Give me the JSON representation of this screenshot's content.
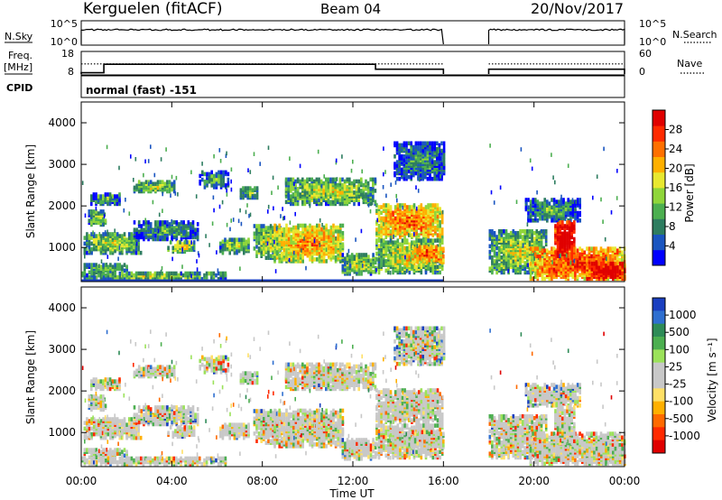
{
  "header": {
    "station": "Kerguelen (fitACF)",
    "beam": "Beam 04",
    "date": "20/Nov/2017"
  },
  "nsky_panel": {
    "left_label": "N.Sky",
    "right_label": "N.Search",
    "left_ticks": [
      "10^5",
      "10^0"
    ],
    "right_ticks": [
      "10^5",
      "10^0"
    ],
    "segments": [
      {
        "start": 0.0,
        "end": 16.0,
        "level": "high"
      },
      {
        "start": 18.0,
        "end": 24.0,
        "level": "high"
      }
    ]
  },
  "freq_panel": {
    "left_label_1": "Freq.",
    "left_label_2": "[MHz]",
    "right_label": "Nave",
    "left_ticks": [
      "18",
      "8"
    ],
    "right_ticks": [
      "60",
      "0"
    ],
    "freq_steps": [
      {
        "start": 0.0,
        "end": 1.0,
        "mhz": 8.6
      },
      {
        "start": 1.0,
        "end": 13.0,
        "mhz": 12.5
      },
      {
        "start": 13.0,
        "end": 16.0,
        "mhz": 10.2
      },
      {
        "start": 18.0,
        "end": 24.0,
        "mhz": 10.2
      }
    ],
    "nave_level": 28
  },
  "cpid_panel": {
    "label": "CPID",
    "text": "normal (fast) -151"
  },
  "chart_data": [
    {
      "type": "heatmap",
      "name": "Power",
      "ylabel": "Slant Range [km]",
      "ylim": [
        180,
        4500
      ],
      "yticks": [
        1000,
        2000,
        3000,
        4000
      ],
      "colorbar_label": "Power [dB]",
      "colorbar_ticks": [
        "4",
        "8",
        "12",
        "16",
        "20",
        "24",
        "28"
      ],
      "colorbar_colors": [
        "#0000ff",
        "#1a55c0",
        "#2e7d60",
        "#4caf50",
        "#8fd63a",
        "#e8e830",
        "#ffb000",
        "#ff7000",
        "#ff2a00",
        "#e00000"
      ],
      "blobs": [
        {
          "t0": 0.1,
          "t1": 2.6,
          "r0": 820,
          "r1": 1300,
          "level": 0.35
        },
        {
          "t0": 0.1,
          "t1": 2.0,
          "r0": 350,
          "r1": 560,
          "level": 0.25
        },
        {
          "t0": 0.0,
          "t1": 6.4,
          "r0": 190,
          "r1": 340,
          "level": 0.3
        },
        {
          "t0": 0.3,
          "t1": 1.1,
          "r0": 1500,
          "r1": 1850,
          "level": 0.3
        },
        {
          "t0": 0.4,
          "t1": 1.7,
          "r0": 2000,
          "r1": 2250,
          "level": 0.2
        },
        {
          "t0": 2.3,
          "t1": 5.2,
          "r0": 1150,
          "r1": 1600,
          "level": 0.2
        },
        {
          "t0": 3.8,
          "t1": 5.0,
          "r0": 850,
          "r1": 1100,
          "level": 0.4
        },
        {
          "t0": 6.1,
          "t1": 7.4,
          "r0": 820,
          "r1": 1150,
          "level": 0.35
        },
        {
          "t0": 2.3,
          "t1": 4.1,
          "r0": 2300,
          "r1": 2550,
          "level": 0.35
        },
        {
          "t0": 5.2,
          "t1": 6.5,
          "r0": 2400,
          "r1": 2800,
          "level": 0.2
        },
        {
          "t0": 7.0,
          "t1": 7.8,
          "r0": 2150,
          "r1": 2400,
          "level": 0.25
        },
        {
          "t0": 7.6,
          "t1": 8.8,
          "r0": 700,
          "r1": 1500,
          "level": 0.35
        },
        {
          "t0": 8.5,
          "t1": 11.6,
          "r0": 620,
          "r1": 1500,
          "level": 0.55
        },
        {
          "t0": 9.0,
          "t1": 13.0,
          "r0": 2000,
          "r1": 2600,
          "level": 0.35
        },
        {
          "t0": 11.5,
          "t1": 13.0,
          "r0": 320,
          "r1": 780,
          "level": 0.35
        },
        {
          "t0": 13.0,
          "t1": 16.0,
          "r0": 1200,
          "r1": 2000,
          "level": 0.6
        },
        {
          "t0": 13.0,
          "t1": 16.0,
          "r0": 350,
          "r1": 1150,
          "level": 0.4
        },
        {
          "t0": 14.6,
          "t1": 16.0,
          "r0": 600,
          "r1": 1000,
          "level": 0.65
        },
        {
          "t0": 13.8,
          "t1": 16.0,
          "r0": 2600,
          "r1": 3500,
          "level": 0.15
        },
        {
          "t0": 18.0,
          "t1": 20.5,
          "r0": 350,
          "r1": 1350,
          "level": 0.35
        },
        {
          "t0": 19.6,
          "t1": 22.0,
          "r0": 1600,
          "r1": 2100,
          "level": 0.2
        },
        {
          "t0": 19.8,
          "t1": 24.0,
          "r0": 200,
          "r1": 950,
          "level": 0.7
        },
        {
          "t0": 20.9,
          "t1": 21.8,
          "r0": 700,
          "r1": 1600,
          "level": 0.95
        },
        {
          "t0": 22.3,
          "t1": 24.0,
          "r0": 200,
          "r1": 600,
          "level": 0.9
        }
      ]
    },
    {
      "type": "heatmap",
      "name": "Velocity",
      "ylabel": "Slant Range [km]",
      "ylim": [
        180,
        4500
      ],
      "yticks": [
        1000,
        2000,
        3000,
        4000
      ],
      "xlabel": "Time UT",
      "xticks": [
        "00:00",
        "04:00",
        "08:00",
        "12:00",
        "16:00",
        "20:00",
        "00:00"
      ],
      "xlim": [
        0,
        24
      ],
      "colorbar_label": "Velocity [m s⁻¹]",
      "colorbar_ticks": [
        "1000",
        "500",
        "100",
        "25",
        "-25",
        "-100",
        "-500",
        "-1000"
      ],
      "colorbar_colors": [
        "#1a3fc0",
        "#2f6fd0",
        "#2e8b57",
        "#4caf50",
        "#9be25a",
        "#c8c8c8",
        "#c8c8c8",
        "#ffe066",
        "#ffb000",
        "#ff6a00",
        "#ff2a00",
        "#e00000"
      ]
    }
  ]
}
